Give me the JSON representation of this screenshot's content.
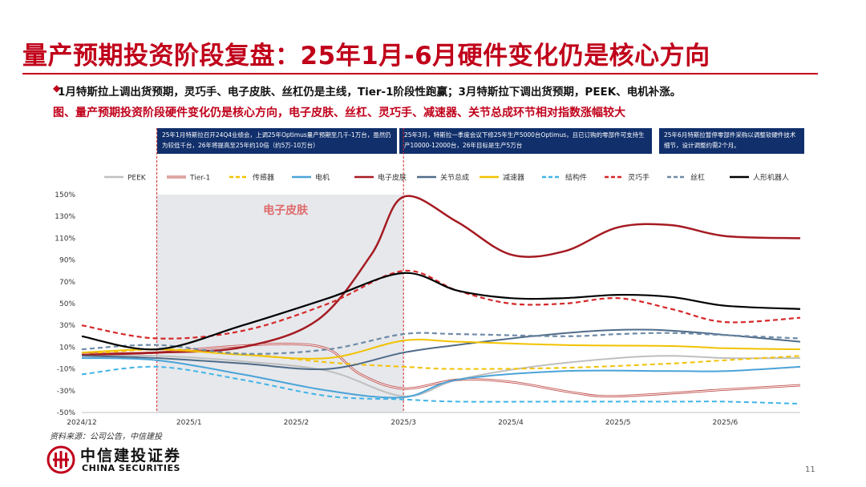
{
  "page": {
    "title": "量产预期投资阶段复盘：25年1月-6月硬件变化仍是核心方向",
    "bullet_mark": "◆",
    "bullet": "1月特斯拉上调出货预期，灵巧手、电子皮肤、丝杠仍是主线，Tier-1阶段性跑赢；3月特斯拉下调出货预期，PEEK、电机补涨。",
    "subtitle": "图、量产预期投资阶段硬件变化仍是核心方向，电子皮肤、丝杠、灵巧手、减速器、关节总成环节相对指数涨幅较大",
    "notes": [
      "25年1月特斯拉召开24Q4业绩会，上调25年Optimus量产预期至几千-1万台，虽然仍为较低千台，26年将提高至25年约10倍（约5万-10万台）",
      "25年3月，特斯拉一季度会议下修25年生产5000台Optimus，且已订购的零部件可支持生产10000-12000台，26年目标是生产5万台",
      "25年6月特斯拉暂停零部件采购以调整软硬件技术细节，设计调整约需2个月。"
    ],
    "source": "资料来源：公司公告，中信建投",
    "logo_cn": "中信建投证券",
    "logo_en": "CHINA SECURITIES",
    "page_number": "11"
  },
  "colors": {
    "brand_red": "#c0001a",
    "note_bg": "#102f6b",
    "shade": "#e6e8ec"
  },
  "chart_data": {
    "type": "line",
    "x_ticks": [
      "2024/12",
      "2025/1",
      "2025/2",
      "2025/3",
      "2025/4",
      "2025/5",
      "2025/6"
    ],
    "x_range": [
      0,
      6.7
    ],
    "y_range": [
      -50,
      150
    ],
    "y_ticks": [
      -50,
      -30,
      -10,
      10,
      30,
      50,
      70,
      90,
      110,
      130,
      150
    ],
    "y_tick_labels": [
      "-50%",
      "-30%",
      "-10%",
      "10%",
      "30%",
      "50%",
      "70%",
      "90%",
      "110%",
      "130%",
      "150%"
    ],
    "y_unit": "%",
    "shaded_region": [
      0.7,
      3.0
    ],
    "vlines": [
      0.7,
      3.0
    ],
    "annotation": {
      "text": "电子皮肤",
      "x": 1.9,
      "y": 136
    },
    "series": [
      {
        "name": "PEEK",
        "color": "#bfbfbf",
        "style": "solid",
        "width": 2,
        "points": [
          [
            0,
            2
          ],
          [
            0.7,
            2
          ],
          [
            1.5,
            -3
          ],
          [
            2.3,
            -12
          ],
          [
            3.0,
            -35
          ],
          [
            3.5,
            -20
          ],
          [
            4.2,
            -8
          ],
          [
            5.0,
            0
          ],
          [
            5.5,
            2
          ],
          [
            6.0,
            0
          ],
          [
            6.7,
            0
          ]
        ]
      },
      {
        "name": "Tier-1",
        "color": "#c0504d",
        "style": "double",
        "width": 2.8,
        "points": [
          [
            0,
            4
          ],
          [
            0.7,
            5
          ],
          [
            1.3,
            10
          ],
          [
            1.9,
            13
          ],
          [
            2.3,
            8
          ],
          [
            2.6,
            -15
          ],
          [
            3.0,
            -28
          ],
          [
            3.5,
            -20
          ],
          [
            4.0,
            -22
          ],
          [
            4.6,
            -32
          ],
          [
            5.0,
            -35
          ],
          [
            6.0,
            -29
          ],
          [
            6.7,
            -25
          ]
        ]
      },
      {
        "name": "传感器",
        "color": "#f2c200",
        "style": "dash",
        "width": 2,
        "points": [
          [
            0,
            3
          ],
          [
            0.7,
            8
          ],
          [
            1.5,
            4
          ],
          [
            2.3,
            -4
          ],
          [
            3.0,
            -8
          ],
          [
            3.5,
            -10
          ],
          [
            4.5,
            -9
          ],
          [
            5.5,
            -5
          ],
          [
            6.0,
            -2
          ],
          [
            6.7,
            2
          ]
        ]
      },
      {
        "name": "电机",
        "color": "#4aa3d8",
        "style": "solid",
        "width": 2,
        "points": [
          [
            0,
            0
          ],
          [
            0.7,
            -2
          ],
          [
            1.5,
            -15
          ],
          [
            2.3,
            -30
          ],
          [
            3.0,
            -36
          ],
          [
            3.5,
            -20
          ],
          [
            4.5,
            -12
          ],
          [
            5.5,
            -12
          ],
          [
            6.0,
            -12
          ],
          [
            6.7,
            -8
          ]
        ]
      },
      {
        "name": "电子皮肤",
        "color": "#a51b22",
        "style": "solid",
        "width": 2.5,
        "points": [
          [
            0,
            3
          ],
          [
            0.7,
            5
          ],
          [
            1.5,
            10
          ],
          [
            2.2,
            35
          ],
          [
            2.7,
            95
          ],
          [
            3.0,
            148
          ],
          [
            3.5,
            125
          ],
          [
            4.0,
            95
          ],
          [
            4.5,
            98
          ],
          [
            5.0,
            120
          ],
          [
            5.5,
            122
          ],
          [
            6.0,
            112
          ],
          [
            6.7,
            110
          ]
        ]
      },
      {
        "name": "关节总成",
        "color": "#4f6b88",
        "style": "solid",
        "width": 2,
        "points": [
          [
            0,
            2
          ],
          [
            0.7,
            0
          ],
          [
            1.5,
            -5
          ],
          [
            2.3,
            -10
          ],
          [
            3.0,
            5
          ],
          [
            3.5,
            12
          ],
          [
            4.2,
            20
          ],
          [
            4.8,
            25
          ],
          [
            5.3,
            26
          ],
          [
            5.8,
            23
          ],
          [
            6.7,
            15
          ]
        ]
      },
      {
        "name": "减速器",
        "color": "#f2c200",
        "style": "solid",
        "width": 2,
        "points": [
          [
            0,
            5
          ],
          [
            0.7,
            8
          ],
          [
            1.5,
            3
          ],
          [
            2.3,
            0
          ],
          [
            3.0,
            16
          ],
          [
            3.5,
            15
          ],
          [
            4.5,
            12
          ],
          [
            5.5,
            11
          ],
          [
            6.0,
            9
          ],
          [
            6.7,
            8
          ]
        ]
      },
      {
        "name": "结构件",
        "color": "#40b4e6",
        "style": "dash",
        "width": 2,
        "points": [
          [
            0,
            -15
          ],
          [
            0.7,
            -8
          ],
          [
            1.5,
            -20
          ],
          [
            2.3,
            -35
          ],
          [
            3.0,
            -38
          ],
          [
            3.5,
            -40
          ],
          [
            4.5,
            -40
          ],
          [
            5.5,
            -40
          ],
          [
            6.0,
            -40
          ],
          [
            6.7,
            -42
          ]
        ]
      },
      {
        "name": "灵巧手",
        "color": "#d62728",
        "style": "dash",
        "width": 2.2,
        "points": [
          [
            0,
            30
          ],
          [
            0.7,
            18
          ],
          [
            1.5,
            25
          ],
          [
            2.3,
            50
          ],
          [
            3.0,
            80
          ],
          [
            3.5,
            62
          ],
          [
            4.0,
            50
          ],
          [
            4.5,
            50
          ],
          [
            5.0,
            55
          ],
          [
            5.5,
            45
          ],
          [
            6.0,
            33
          ],
          [
            6.7,
            37
          ]
        ]
      },
      {
        "name": "丝杠",
        "color": "#6e8aa6",
        "style": "dash",
        "width": 2.2,
        "points": [
          [
            0,
            8
          ],
          [
            0.7,
            12
          ],
          [
            1.5,
            4
          ],
          [
            2.3,
            8
          ],
          [
            3.0,
            22
          ],
          [
            3.5,
            22
          ],
          [
            4.5,
            20
          ],
          [
            5.0,
            22
          ],
          [
            5.5,
            23
          ],
          [
            6.0,
            21
          ],
          [
            6.7,
            18
          ]
        ]
      },
      {
        "name": "人形机器人",
        "color": "#000000",
        "style": "solid",
        "width": 2.2,
        "points": [
          [
            0,
            20
          ],
          [
            0.7,
            8
          ],
          [
            1.5,
            30
          ],
          [
            2.3,
            55
          ],
          [
            3.0,
            78
          ],
          [
            3.5,
            62
          ],
          [
            4.0,
            55
          ],
          [
            4.5,
            55
          ],
          [
            5.0,
            58
          ],
          [
            5.5,
            56
          ],
          [
            6.0,
            48
          ],
          [
            6.7,
            45
          ]
        ]
      }
    ]
  }
}
